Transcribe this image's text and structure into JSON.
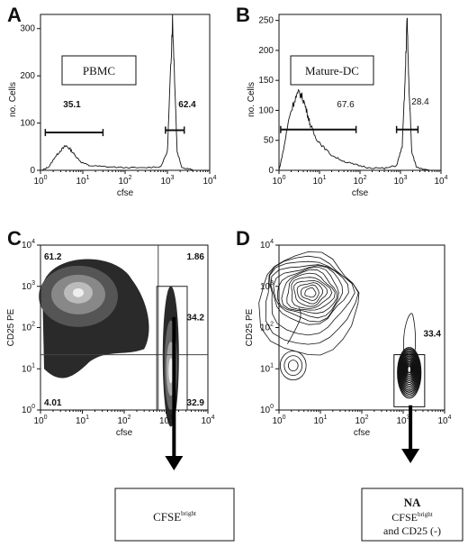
{
  "chart_data": [
    {
      "panel": "A",
      "type": "histogram",
      "xlabel": "cfse",
      "ylabel": "no. Cells",
      "xscale": "log",
      "xlim": [
        1,
        10000
      ],
      "ylim": [
        0,
        330
      ],
      "yticks": [
        0,
        100,
        200,
        300
      ],
      "label": "PBMC",
      "gates": [
        {
          "range": [
            1.3,
            30
          ],
          "level": 80,
          "value": "35.1"
        },
        {
          "range": [
            900,
            2500
          ],
          "level": 85,
          "value": "62.4"
        }
      ],
      "curve": [
        [
          1.1,
          0
        ],
        [
          1.6,
          8
        ],
        [
          2.2,
          28
        ],
        [
          3,
          42
        ],
        [
          4,
          52
        ],
        [
          5,
          45
        ],
        [
          6.5,
          32
        ],
        [
          9,
          18
        ],
        [
          14,
          10
        ],
        [
          30,
          8
        ],
        [
          80,
          6
        ],
        [
          250,
          5
        ],
        [
          700,
          8
        ],
        [
          1000,
          40
        ],
        [
          1200,
          220
        ],
        [
          1320,
          320
        ],
        [
          1450,
          220
        ],
        [
          1700,
          40
        ],
        [
          2200,
          6
        ],
        [
          4000,
          2
        ]
      ]
    },
    {
      "panel": "B",
      "type": "histogram",
      "xlabel": "cfse",
      "ylabel": "no. Cells",
      "xscale": "log",
      "xlim": [
        1,
        10000
      ],
      "ylim": [
        0,
        260
      ],
      "yticks": [
        0,
        50,
        100,
        150,
        200,
        250
      ],
      "label": "Mature-DC",
      "gates": [
        {
          "range": [
            1.1,
            80
          ],
          "level": 68,
          "value": "67.6"
        },
        {
          "range": [
            800,
            2700
          ],
          "level": 68,
          "value": "28.4"
        }
      ],
      "curve": [
        [
          1,
          0
        ],
        [
          1.3,
          35
        ],
        [
          1.8,
          90
        ],
        [
          2.5,
          120
        ],
        [
          3.2,
          130
        ],
        [
          4,
          118
        ],
        [
          5,
          95
        ],
        [
          6,
          75
        ],
        [
          8,
          55
        ],
        [
          12,
          40
        ],
        [
          20,
          25
        ],
        [
          40,
          15
        ],
        [
          70,
          10
        ],
        [
          150,
          5
        ],
        [
          400,
          3
        ],
        [
          800,
          8
        ],
        [
          1100,
          40
        ],
        [
          1300,
          150
        ],
        [
          1450,
          255
        ],
        [
          1600,
          150
        ],
        [
          1900,
          30
        ],
        [
          2500,
          5
        ],
        [
          5000,
          1
        ]
      ]
    },
    {
      "panel": "C",
      "type": "density",
      "xlabel": "cfse",
      "ylabel": "CD25 PE",
      "xscale": "log",
      "yscale": "log",
      "xlim": [
        1,
        10000
      ],
      "ylim": [
        1,
        10000
      ],
      "quadrant": {
        "x": 650,
        "y": 22
      },
      "gate": {
        "xrange": [
          600,
          3200
        ],
        "yrange": [
          1,
          1000
        ]
      },
      "quadrant_values": {
        "upper_left": "61.2",
        "upper_right": "1.86",
        "lower_left": "4.01",
        "lower_right": "32.9"
      },
      "gate_value": "34.2",
      "populations": [
        {
          "cx": 8,
          "cy": 700,
          "sx": 1.2,
          "sy": 0.7
        },
        {
          "cx": 1300,
          "cy": 12,
          "sx": 0.15,
          "sy": 0.9
        }
      ]
    },
    {
      "panel": "D",
      "type": "contour",
      "xlabel": "cfse",
      "ylabel": "CD25 PE",
      "xscale": "log",
      "yscale": "log",
      "xlim": [
        1,
        10000
      ],
      "ylim": [
        1,
        10000
      ],
      "gate": {
        "xrange": [
          600,
          3300
        ],
        "yrange": [
          1.2,
          22
        ]
      },
      "gate_value": "33.4",
      "populations": [
        {
          "cx": 5,
          "cy": 700,
          "sx": 0.7,
          "sy": 0.45
        },
        {
          "cx": 1400,
          "cy": 8,
          "sx": 0.12,
          "sy": 0.55
        },
        {
          "cx": 2.2,
          "cy": 12,
          "sx": 0.2,
          "sy": 0.2
        }
      ]
    }
  ],
  "boxes": {
    "c_result": {
      "base": "CFSE",
      "sup": "bright"
    },
    "d_result": {
      "title": "NA",
      "line1_base": "CFSE",
      "line1_sup": "bright",
      "line2": "and CD25 (-)"
    }
  }
}
